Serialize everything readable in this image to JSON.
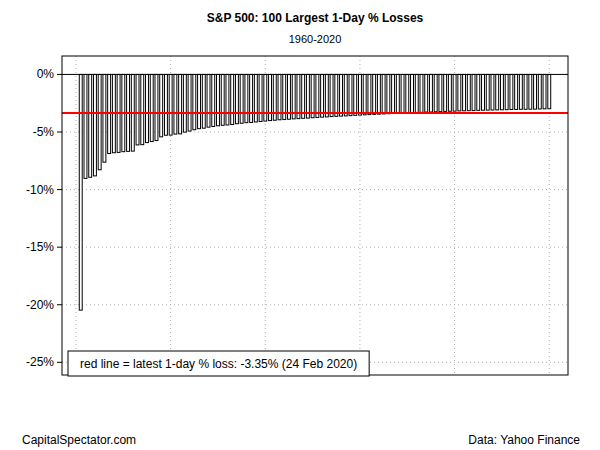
{
  "chart_data": {
    "type": "bar",
    "title": "S&P 500: 100 Largest 1-Day % Losses",
    "subtitle": "1960-2020",
    "footer_left": "CapitalSpectator.com",
    "footer_right": "Data: Yahoo Finance",
    "x": [
      1,
      2,
      3,
      4,
      5,
      6,
      7,
      8,
      9,
      10,
      11,
      12,
      13,
      14,
      15,
      16,
      17,
      18,
      19,
      20,
      21,
      22,
      23,
      24,
      25,
      26,
      27,
      28,
      29,
      30,
      31,
      32,
      33,
      34,
      35,
      36,
      37,
      38,
      39,
      40,
      41,
      42,
      43,
      44,
      45,
      46,
      47,
      48,
      49,
      50,
      51,
      52,
      53,
      54,
      55,
      56,
      57,
      58,
      59,
      60,
      61,
      62,
      63,
      64,
      65,
      66,
      67,
      68,
      69,
      70,
      71,
      72,
      73,
      74,
      75,
      76,
      77,
      78,
      79,
      80,
      81,
      82,
      83,
      84,
      85,
      86,
      87,
      88,
      89,
      90,
      91,
      92,
      93,
      94,
      95,
      96,
      97,
      98,
      99,
      100
    ],
    "values": [
      -20.47,
      -9.03,
      -8.93,
      -8.81,
      -8.28,
      -7.62,
      -6.87,
      -6.8,
      -6.77,
      -6.71,
      -6.68,
      -6.66,
      -6.12,
      -6.1,
      -5.92,
      -5.83,
      -5.74,
      -5.42,
      -5.28,
      -5.27,
      -5.18,
      -5.16,
      -5.01,
      -4.92,
      -4.8,
      -4.71,
      -4.67,
      -4.58,
      -4.52,
      -4.46,
      -4.42,
      -4.39,
      -4.35,
      -4.28,
      -4.24,
      -4.19,
      -4.17,
      -4.13,
      -4.09,
      -4.05,
      -4.01,
      -3.98,
      -3.94,
      -3.92,
      -3.89,
      -3.86,
      -3.84,
      -3.81,
      -3.79,
      -3.76,
      -3.74,
      -3.71,
      -3.69,
      -3.66,
      -3.64,
      -3.62,
      -3.6,
      -3.58,
      -3.55,
      -3.53,
      -3.51,
      -3.49,
      -3.47,
      -3.45,
      -3.43,
      -3.41,
      -3.39,
      -3.37,
      -3.35,
      -3.34,
      -3.32,
      -3.3,
      -3.29,
      -3.27,
      -3.26,
      -3.24,
      -3.23,
      -3.21,
      -3.2,
      -3.19,
      -3.17,
      -3.16,
      -3.15,
      -3.14,
      -3.12,
      -3.11,
      -3.1,
      -3.09,
      -3.08,
      -3.07,
      -3.06,
      -3.05,
      -3.04,
      -3.03,
      -3.03,
      -3.02,
      -3.01,
      -3.0,
      -2.99,
      -2.98
    ],
    "color": "#ffffff",
    "xlim": [
      -2.96,
      103.96
    ],
    "xticks": [
      0,
      20,
      40,
      60,
      80,
      100
    ],
    "ylim": [
      -26.1,
      1.6
    ],
    "yticks": [
      {
        "value": 0,
        "label": "0%"
      },
      {
        "value": -5,
        "label": "-5%"
      },
      {
        "value": -10,
        "label": "-10%"
      },
      {
        "value": -15,
        "label": "-15%"
      },
      {
        "value": -20,
        "label": "-20%"
      },
      {
        "value": -25,
        "label": "-25%"
      }
    ],
    "grid": true,
    "tick_labels": "y",
    "reference_line": {
      "value": -3.35,
      "color": "#ff0000",
      "label": "red line = latest 1-day % loss: -3.35% (24 Feb 2020)"
    }
  }
}
